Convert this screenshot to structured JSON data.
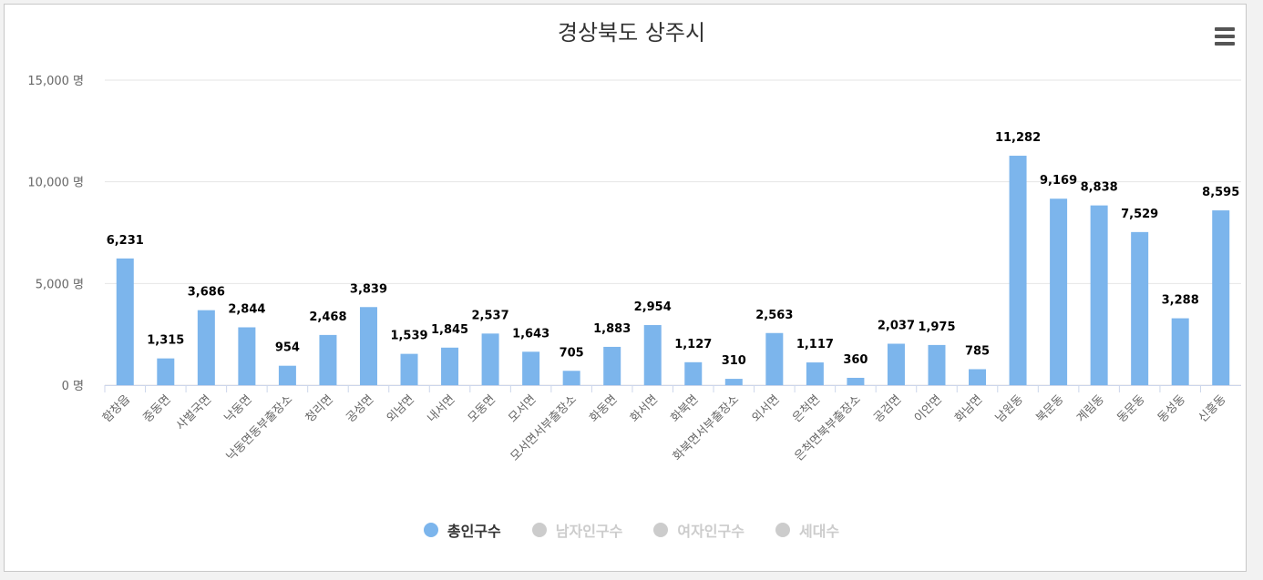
{
  "title": "경상북도 상주시",
  "colors": {
    "bar": "#7cb5ec",
    "inactive": "#cccccc",
    "grid": "#e6e6e6",
    "text": "#333333",
    "axis_text": "#666666"
  },
  "legend": [
    {
      "label": "총인구수",
      "active": true
    },
    {
      "label": "남자인구수",
      "active": false
    },
    {
      "label": "여자인구수",
      "active": false
    },
    {
      "label": "세대수",
      "active": false
    }
  ],
  "chart_data": {
    "type": "bar",
    "title": "경상북도 상주시",
    "categories": [
      "함창읍",
      "중동면",
      "사벌국면",
      "낙동면",
      "낙동면동부출장소",
      "청리면",
      "공성면",
      "외남면",
      "내서면",
      "모동면",
      "모서면",
      "모서면서부출장소",
      "화동면",
      "화서면",
      "화북면",
      "화북면서부출장소",
      "외서면",
      "은척면",
      "은척면북부출장소",
      "공검면",
      "이안면",
      "화남면",
      "남원동",
      "북문동",
      "계림동",
      "동문동",
      "동성동",
      "신흥동"
    ],
    "series": [
      {
        "name": "총인구수",
        "values": [
          6231,
          1315,
          3686,
          2844,
          954,
          2468,
          3839,
          1539,
          1845,
          2537,
          1643,
          705,
          1883,
          2954,
          1127,
          310,
          2563,
          1117,
          360,
          2037,
          1975,
          785,
          11282,
          9169,
          8838,
          7529,
          3288,
          8595
        ]
      }
    ],
    "value_labels": [
      "6,231",
      "1,315",
      "3,686",
      "2,844",
      "954",
      "2,468",
      "3,839",
      "1,539",
      "1,845",
      "2,537",
      "1,643",
      "705",
      "1,883",
      "2,954",
      "1,127",
      "310",
      "2,563",
      "1,117",
      "360",
      "2,037",
      "1,975",
      "785",
      "11,282",
      "9,169",
      "8,838",
      "7,529",
      "3,288",
      "8,595"
    ],
    "yticks": [
      "0 명",
      "5,000 명",
      "10,000 명",
      "15,000 명"
    ],
    "ylim": [
      0,
      15000
    ],
    "grid": true,
    "legend_position": "bottom-center"
  }
}
